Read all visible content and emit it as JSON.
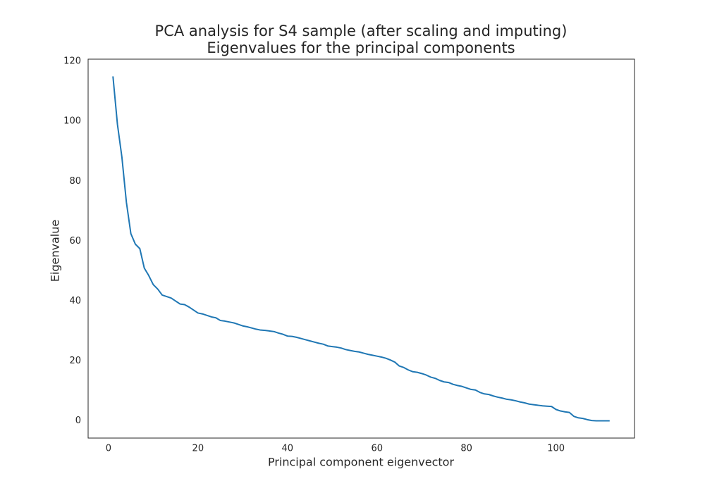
{
  "chart_data": {
    "type": "line",
    "title": "PCA analysis for S4 sample (after scaling and imputing)",
    "subtitle": "Eigenvalues for the principal components",
    "x_label": "Principal component eigenvector",
    "y_label": "Eigenvalue",
    "xlim": [
      -4.55,
      117.55
    ],
    "ylim": [
      -5.75,
      120.75
    ],
    "xticks": [
      0,
      20,
      40,
      60,
      80,
      100
    ],
    "yticks": [
      0,
      20,
      40,
      60,
      80,
      100,
      120
    ],
    "grid": false,
    "x": [
      1,
      2,
      3,
      4,
      5,
      6,
      7,
      8,
      9,
      10,
      11,
      12,
      13,
      14,
      15,
      16,
      17,
      18,
      19,
      20,
      21,
      22,
      23,
      24,
      25,
      26,
      27,
      28,
      29,
      30,
      31,
      32,
      33,
      34,
      35,
      36,
      37,
      38,
      39,
      40,
      41,
      42,
      43,
      44,
      45,
      46,
      47,
      48,
      49,
      50,
      51,
      52,
      53,
      54,
      55,
      56,
      57,
      58,
      59,
      60,
      61,
      62,
      63,
      64,
      65,
      66,
      67,
      68,
      69,
      70,
      71,
      72,
      73,
      74,
      75,
      76,
      77,
      78,
      79,
      80,
      81,
      82,
      83,
      84,
      85,
      86,
      87,
      88,
      89,
      90,
      91,
      92,
      93,
      94,
      95,
      96,
      97,
      98,
      99,
      100,
      101,
      102,
      103,
      104,
      105,
      106,
      107,
      108,
      109,
      110,
      111,
      112
    ],
    "series": [
      {
        "color": "#1f77b4",
        "values": [
          115,
          99,
          88,
          73,
          62.5,
          59,
          57.5,
          51,
          48.5,
          45.5,
          44,
          42,
          41.5,
          41,
          40,
          39,
          38.8,
          38,
          37,
          36,
          35.7,
          35.2,
          34.7,
          34.4,
          33.5,
          33.3,
          33,
          32.7,
          32.2,
          31.7,
          31.4,
          31,
          30.6,
          30.3,
          30.2,
          30,
          29.8,
          29.3,
          28.9,
          28.3,
          28.2,
          27.9,
          27.5,
          27.1,
          26.7,
          26.3,
          25.9,
          25.6,
          25,
          24.8,
          24.6,
          24.3,
          23.8,
          23.5,
          23.2,
          23,
          22.6,
          22.2,
          21.9,
          21.6,
          21.3,
          20.9,
          20.3,
          19.6,
          18.3,
          17.8,
          17,
          16.4,
          16.2,
          15.8,
          15.3,
          14.6,
          14.2,
          13.5,
          13,
          12.8,
          12.2,
          11.8,
          11.5,
          11,
          10.5,
          10.3,
          9.5,
          9,
          8.8,
          8.3,
          7.9,
          7.6,
          7.2,
          7,
          6.7,
          6.3,
          6,
          5.6,
          5.4,
          5.2,
          5,
          4.9,
          4.8,
          3.8,
          3.3,
          3,
          2.8,
          1.5,
          1,
          0.8,
          0.4,
          0.1,
          0,
          0,
          0,
          0
        ]
      }
    ]
  }
}
